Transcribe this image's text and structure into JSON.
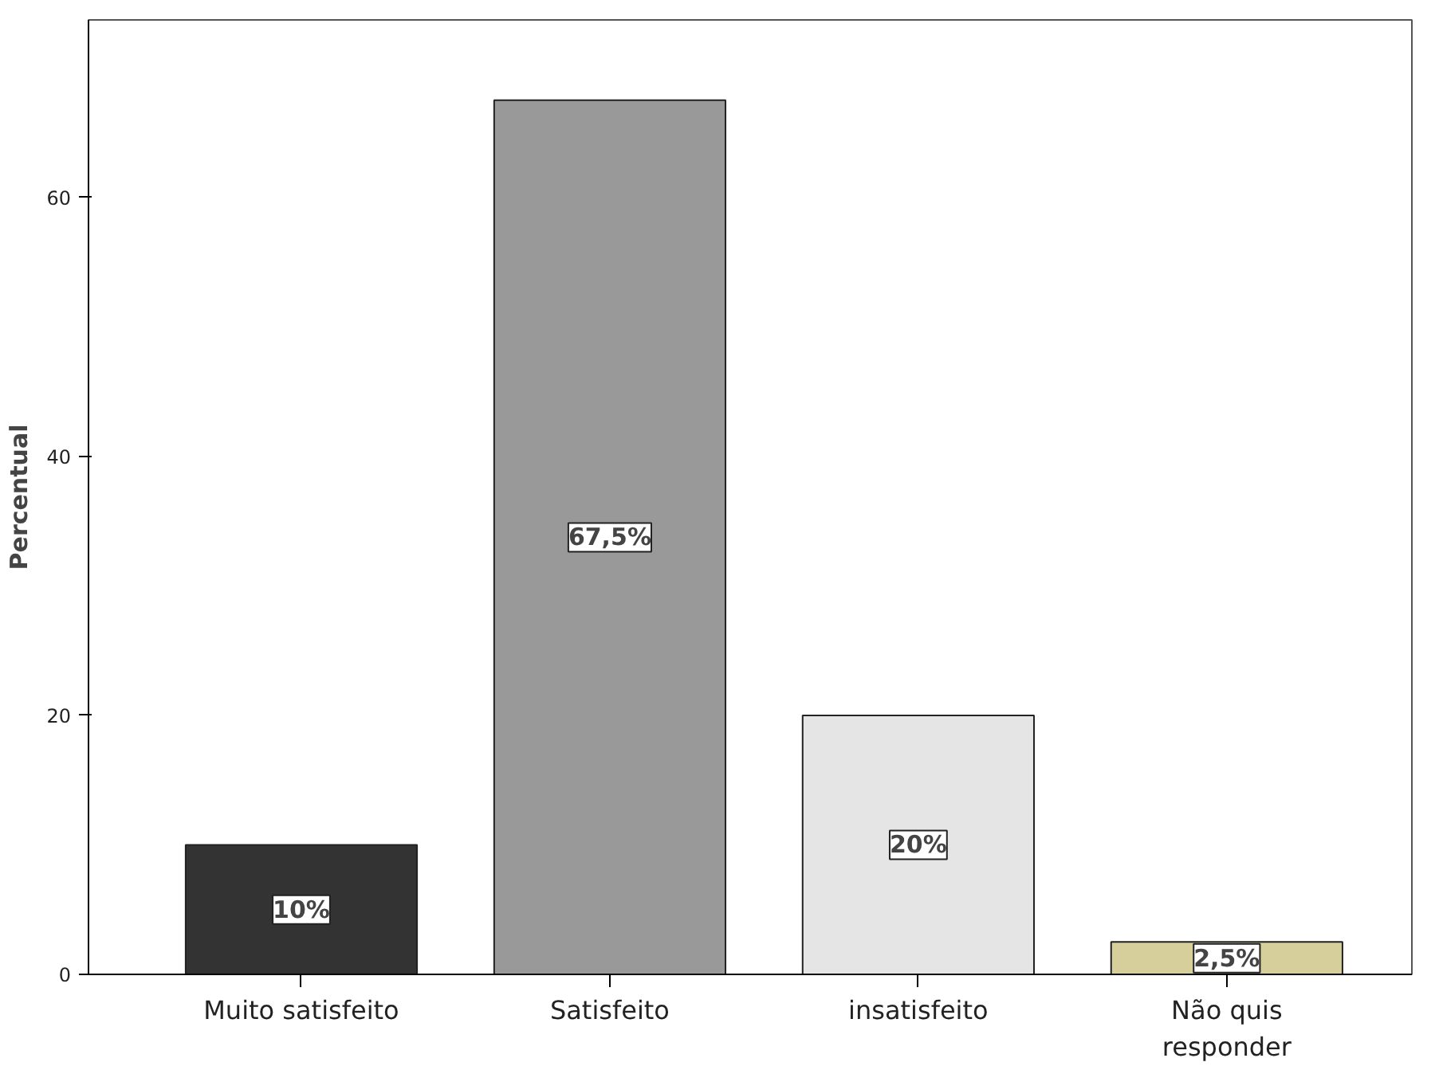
{
  "chart_data": {
    "type": "bar",
    "ylabel": "Percentual",
    "categories": [
      "Muito satisfeito",
      "Satisfeito",
      "insatisfeito",
      "Não quis responder"
    ],
    "values": [
      10,
      67.5,
      20,
      2.5
    ],
    "colors": [
      "#333333",
      "#999999",
      "#e5e5e5",
      "#d6cf9b"
    ],
    "value_labels": [
      "10%",
      "67,5%",
      "20%",
      "2,5%"
    ],
    "ylim": [
      0,
      73.7
    ],
    "yticks": [
      0,
      20,
      40,
      60
    ],
    "grid": false
  }
}
